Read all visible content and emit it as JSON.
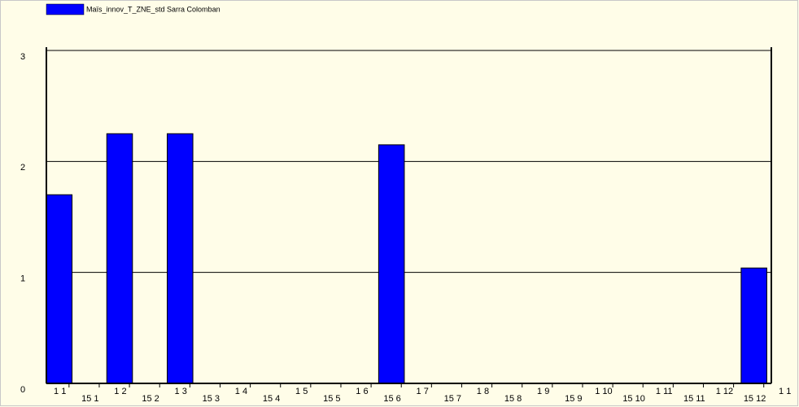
{
  "chart_data": {
    "type": "bar",
    "series": [
      {
        "name": "Maïs_innov_T_ZNE_std Sarra Colomban",
        "color": "#0000ff",
        "values": [
          1.7,
          0,
          2.25,
          0,
          2.25,
          0,
          0,
          0,
          0,
          0,
          0,
          2.15,
          0,
          0,
          0,
          0,
          0,
          0,
          0,
          0,
          0,
          0,
          0,
          1.04,
          null
        ]
      }
    ],
    "categories": [
      "1 1",
      "15 1",
      "1 2",
      "15 2",
      "1 3",
      "15 3",
      "1 4",
      "15 4",
      "1 5",
      "15 5",
      "1 6",
      "15 6",
      "1 7",
      "15 7",
      "1 8",
      "15 8",
      "1 9",
      "15 9",
      "1 10",
      "15 10",
      "1 11",
      "15 11",
      "1 12",
      "15 12",
      "1 1"
    ],
    "ylim": [
      0,
      3
    ],
    "yticks": [
      0,
      1,
      2,
      3
    ],
    "grid": true,
    "legend": "top-left"
  }
}
